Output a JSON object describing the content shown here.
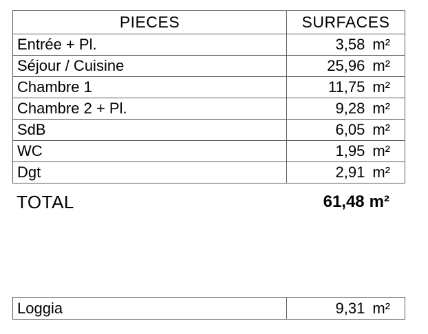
{
  "page": {
    "background": "#ffffff",
    "text_color": "#000000",
    "border_color": "#5a5a5a"
  },
  "surfaces_table": {
    "header": {
      "pieces": "PIECES",
      "surfaces": "SURFACES"
    },
    "rows": [
      {
        "label": "Entrée + Pl.",
        "value": "3,58",
        "unit": "m²"
      },
      {
        "label": "Séjour / Cuisine",
        "value": "25,96",
        "unit": "m²"
      },
      {
        "label": "Chambre 1",
        "value": "11,75",
        "unit": "m²"
      },
      {
        "label": "Chambre 2 + Pl.",
        "value": "9,28",
        "unit": "m²"
      },
      {
        "label": "SdB",
        "value": "6,05",
        "unit": "m²"
      },
      {
        "label": "WC",
        "value": "1,95",
        "unit": "m²"
      },
      {
        "label": "Dgt",
        "value": "2,91",
        "unit": "m²"
      }
    ],
    "total": {
      "label": "TOTAL",
      "value": "61,48",
      "unit": "m²"
    }
  },
  "annex_table": {
    "rows": [
      {
        "label": "Loggia",
        "value": "9,31",
        "unit": "m²"
      }
    ]
  }
}
